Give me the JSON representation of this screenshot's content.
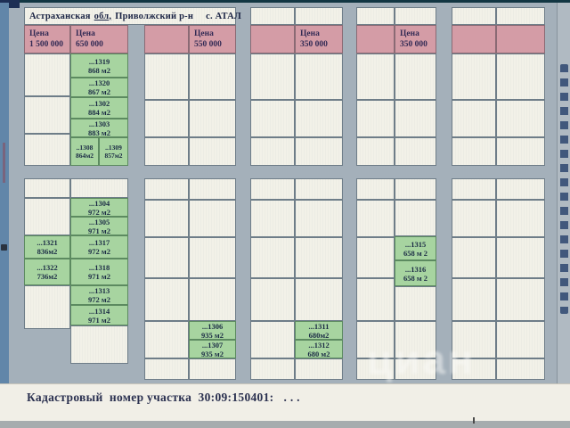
{
  "map": {
    "title": {
      "region": "Астраханская",
      "region_abbr": "обл,",
      "district": "Приволжский р-н",
      "village": "с. АТАЛ"
    },
    "price_label": "Цена",
    "prices": [
      "1 500 000",
      "650 000",
      "550 000",
      "350 000",
      "350 000"
    ],
    "plots": {
      "p1319": {
        "id": "...1319",
        "area": "868 м2"
      },
      "p1320": {
        "id": "...1320",
        "area": "867 м2"
      },
      "p1302": {
        "id": "...1302",
        "area": "884 м2"
      },
      "p1303": {
        "id": "...1303",
        "area": "883 м2"
      },
      "p1308": {
        "id": "..1308",
        "area": "864м2"
      },
      "p1309": {
        "id": "..1309",
        "area": "857м2"
      },
      "p1304": {
        "id": "...1304",
        "area": "972 м2"
      },
      "p1305": {
        "id": "...1305",
        "area": "971 м2"
      },
      "p1317": {
        "id": "...1317",
        "area": "972 м2"
      },
      "p1318": {
        "id": "...1318",
        "area": "971 м2"
      },
      "p1313": {
        "id": "...1313",
        "area": "972 м2"
      },
      "p1314": {
        "id": "...1314",
        "area": "971 м2"
      },
      "p1321": {
        "id": "...1321",
        "area": "836м2"
      },
      "p1322": {
        "id": "...1322",
        "area": "736м2"
      },
      "p1306": {
        "id": "...1306",
        "area": "935 м2"
      },
      "p1307": {
        "id": "...1307",
        "area": "935 м2"
      },
      "p1311": {
        "id": "...1311",
        "area": "680м2"
      },
      "p1312": {
        "id": "...1312",
        "area": "680 м2"
      },
      "p1315": {
        "id": "...1315",
        "area": "658 м 2"
      },
      "p1316": {
        "id": "...1316",
        "area": "658 м 2"
      }
    }
  },
  "footer": {
    "cadastral_note": "Кадастровый  номер участка  30:09:150401:   . . ."
  },
  "watermark": "циан",
  "colors": {
    "pink_header": "#d49ca6",
    "plot_green": "#a7d4a0",
    "road_gray": "#a4b0ba",
    "cell_white": "#f2f1e8",
    "left_strip_blue": "#6186a9",
    "text_navy": "#2b3150"
  }
}
